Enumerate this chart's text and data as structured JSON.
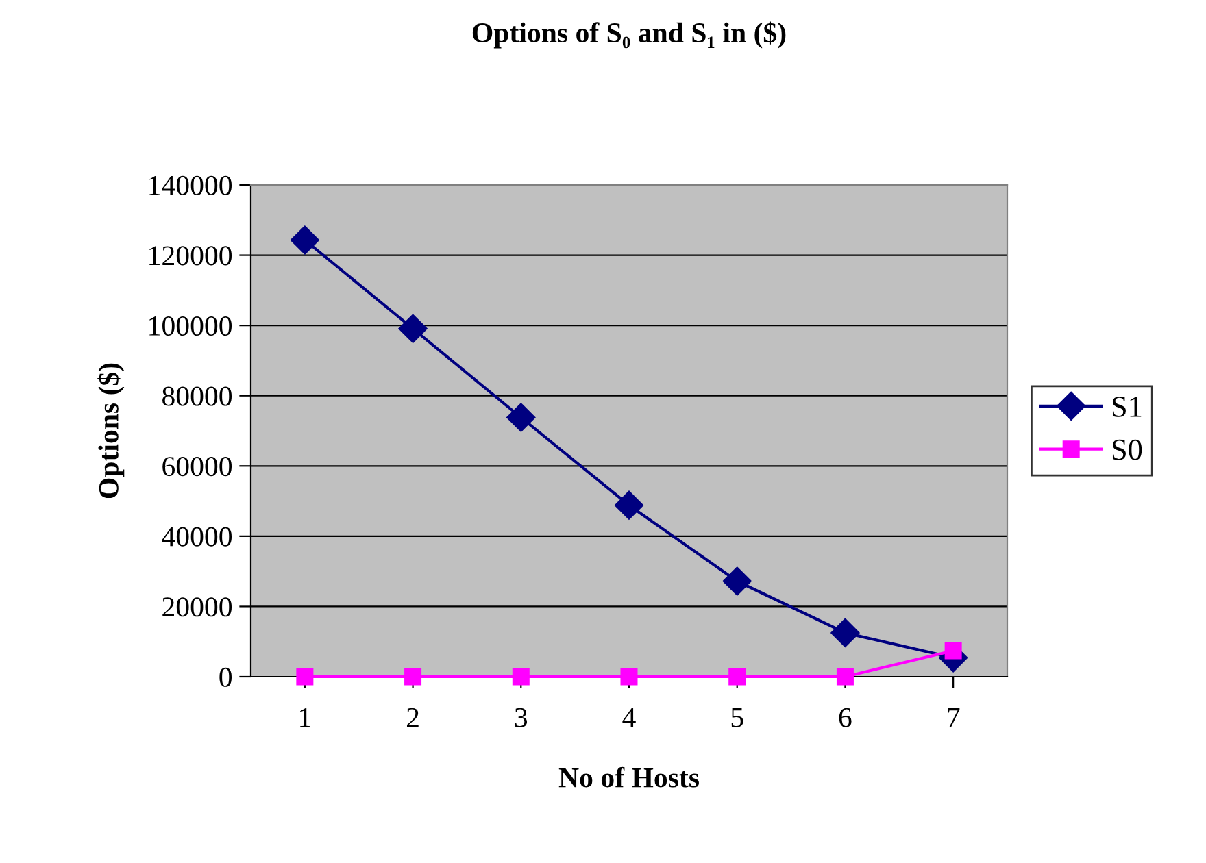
{
  "chart_data": {
    "type": "line",
    "title": "Options of S₀ and S₁ in ($)",
    "xlabel": "No of Hosts",
    "ylabel": "Options ($)",
    "categories": [
      "1",
      "2",
      "3",
      "4",
      "5",
      "6",
      "7"
    ],
    "series": [
      {
        "name": "S1",
        "color": "#000080",
        "marker": "diamond",
        "values": [
          124300,
          99100,
          73800,
          48800,
          27200,
          12500,
          5400
        ]
      },
      {
        "name": "S0",
        "color": "#ff00ff",
        "marker": "square",
        "values": [
          0,
          0,
          0,
          0,
          0,
          0,
          7400
        ]
      }
    ],
    "ylim": [
      0,
      140000
    ],
    "yticks": [
      0,
      20000,
      40000,
      60000,
      80000,
      100000,
      120000,
      140000
    ],
    "grid": "y",
    "legend": "right",
    "line_style": "solid"
  }
}
